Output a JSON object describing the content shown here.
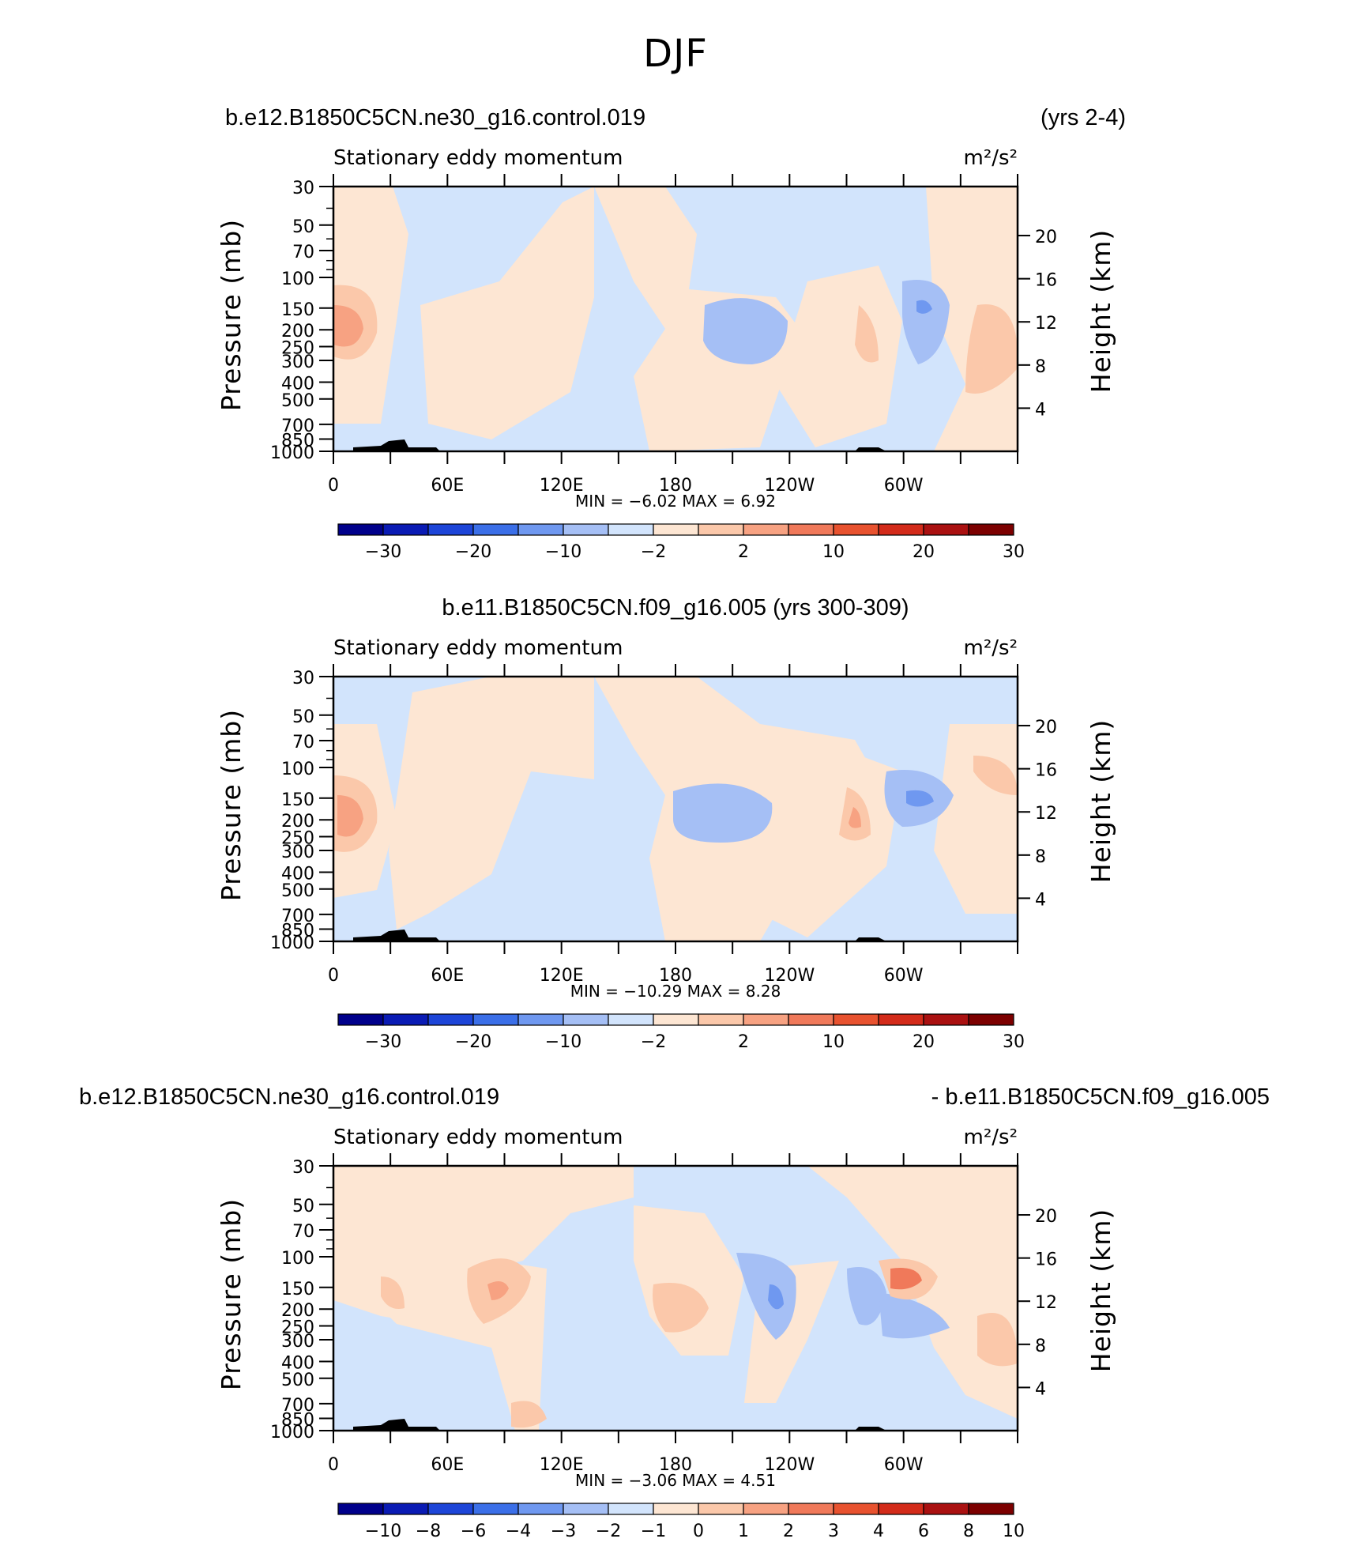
{
  "title": "DJF",
  "panels": [
    {
      "header_left": "b.e12.B1850C5CN.ne30_g16.control.019",
      "header_right": "(yrs 2-4)",
      "header_center": "",
      "variable": "Stationary eddy momentum",
      "units": "m²/s²",
      "stats": "MIN = −6.02   MAX =    6.92",
      "colorbar_labels": [
        "−30",
        "−20",
        "−10",
        "−2",
        "2",
        "10",
        "20",
        "30"
      ],
      "colorbar_label_at": [
        1,
        3,
        5,
        7,
        9,
        11,
        13,
        15
      ]
    },
    {
      "header_left": "",
      "header_right": "",
      "header_center": "b.e11.B1850C5CN.f09_g16.005 (yrs 300-309)",
      "variable": "Stationary eddy momentum",
      "units": "m²/s²",
      "stats": "MIN = −10.29   MAX =    8.28",
      "colorbar_labels": [
        "−30",
        "−20",
        "−10",
        "−2",
        "2",
        "10",
        "20",
        "30"
      ],
      "colorbar_label_at": [
        1,
        3,
        5,
        7,
        9,
        11,
        13,
        15
      ]
    },
    {
      "header_left": "b.e12.B1850C5CN.ne30_g16.control.019",
      "header_right": "- b.e11.B1850C5CN.f09_g16.005",
      "header_center": "",
      "variable": "Stationary eddy momentum",
      "units": "m²/s²",
      "stats": "MIN = −3.06   MAX =    4.51",
      "colorbar_labels": [
        "−10",
        "−8",
        "−6",
        "−4",
        "−3",
        "−2",
        "−1",
        "0",
        "1",
        "2",
        "3",
        "4",
        "6",
        "8",
        "10"
      ],
      "colorbar_label_at": [
        1,
        2,
        3,
        4,
        5,
        6,
        7,
        8,
        9,
        10,
        11,
        12,
        13,
        14,
        15
      ]
    }
  ],
  "chart_data": [
    {
      "type": "heatmap",
      "title": "Stationary eddy momentum",
      "units": "m²/s²",
      "xlabel": "",
      "ylabel": "Pressure (mb)",
      "ylabel_right": "Height (km)",
      "x_ticks": [
        "0",
        "60E",
        "120E",
        "180",
        "120W",
        "60W"
      ],
      "y_ticks": [
        30,
        50,
        70,
        100,
        150,
        200,
        250,
        300,
        400,
        500,
        700,
        850,
        1000
      ],
      "y_right_ticks": [
        4,
        8,
        12,
        16,
        20
      ],
      "y_scale": "log",
      "min": -6.02,
      "max": 6.92
    },
    {
      "type": "heatmap",
      "title": "Stationary eddy momentum",
      "units": "m²/s²",
      "xlabel": "",
      "ylabel": "Pressure (mb)",
      "ylabel_right": "Height (km)",
      "x_ticks": [
        "0",
        "60E",
        "120E",
        "180",
        "120W",
        "60W"
      ],
      "y_ticks": [
        30,
        50,
        70,
        100,
        150,
        200,
        250,
        300,
        400,
        500,
        700,
        850,
        1000
      ],
      "y_right_ticks": [
        4,
        8,
        12,
        16,
        20
      ],
      "y_scale": "log",
      "min": -10.29,
      "max": 8.28
    },
    {
      "type": "heatmap",
      "title": "Stationary eddy momentum",
      "units": "m²/s²",
      "xlabel": "",
      "ylabel": "Pressure (mb)",
      "ylabel_right": "Height (km)",
      "x_ticks": [
        "0",
        "60E",
        "120E",
        "180",
        "120W",
        "60W"
      ],
      "y_ticks": [
        30,
        50,
        70,
        100,
        150,
        200,
        250,
        300,
        400,
        500,
        700,
        850,
        1000
      ],
      "y_right_ticks": [
        4,
        8,
        12,
        16,
        20
      ],
      "y_scale": "log",
      "min": -3.06,
      "max": 4.51
    }
  ],
  "colors": {
    "colorbar": [
      "#00008b",
      "#0a1bb4",
      "#1d45d8",
      "#3b6fe8",
      "#6f98f0",
      "#a5bff5",
      "#d2e4fc",
      "#fde6d3",
      "#fbc8aa",
      "#f7a282",
      "#f0795a",
      "#e8522f",
      "#d32b1a",
      "#aa1111",
      "#7c0000"
    ],
    "bg_blue": "#d2e4fc",
    "bg_peach": "#fde6d3",
    "topo": "#000000"
  }
}
